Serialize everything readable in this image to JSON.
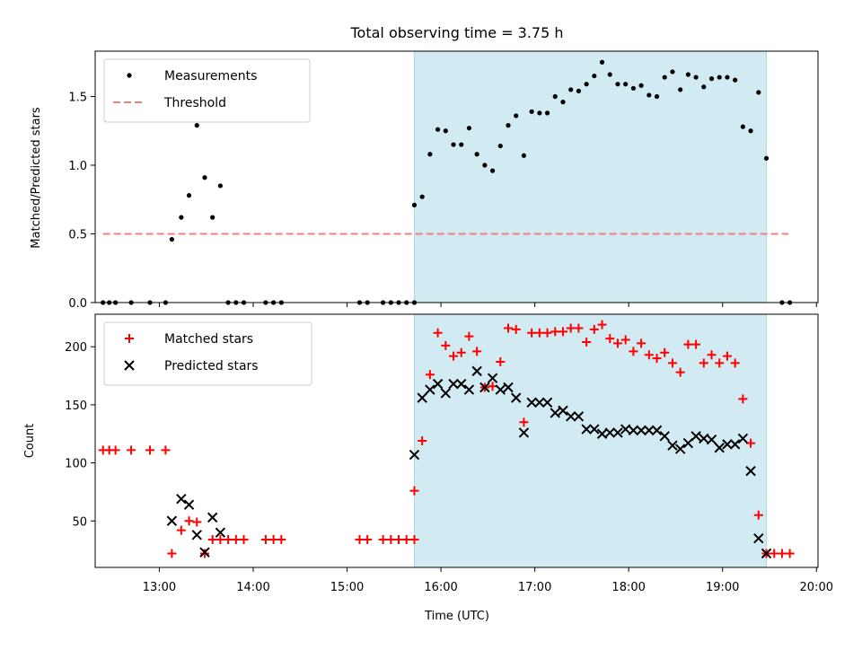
{
  "chart_data": {
    "type": "scatter",
    "title": "Total observing time = 3.75 h",
    "xlabel": "Time (UTC)",
    "x_ticks": [
      "13:00",
      "14:00",
      "15:00",
      "16:00",
      "17:00",
      "18:00",
      "19:00",
      "20:00"
    ],
    "xlim": [
      "12:19",
      "20:01"
    ],
    "shaded_interval": [
      "15:43",
      "19:28"
    ],
    "shade_color": "#add8e6",
    "panels": [
      {
        "ylabel": "Matched/Predicted stars",
        "ylim": [
          0,
          1.83
        ],
        "y_ticks": [
          "0.0",
          "0.5",
          "1.0",
          "1.5"
        ],
        "legend_position": "upper-left",
        "threshold": {
          "name": "Threshold",
          "value": 0.5,
          "x_range": [
            "12:24",
            "19:42"
          ],
          "color": "#f08080",
          "style": "dashed"
        },
        "series": [
          {
            "name": "Measurements",
            "marker": "dot",
            "color": "#000000",
            "points": [
              [
                "12:24",
                0
              ],
              [
                "12:28",
                0
              ],
              [
                "12:32",
                0
              ],
              [
                "12:42",
                0
              ],
              [
                "12:54",
                0
              ],
              [
                "13:04",
                0
              ],
              [
                "13:08",
                0.46
              ],
              [
                "13:14",
                0.62
              ],
              [
                "13:19",
                0.78
              ],
              [
                "13:24",
                1.29
              ],
              [
                "13:29",
                0.91
              ],
              [
                "13:34",
                0.62
              ],
              [
                "13:39",
                0.85
              ],
              [
                "13:44",
                0
              ],
              [
                "13:49",
                0
              ],
              [
                "13:54",
                0
              ],
              [
                "14:08",
                0
              ],
              [
                "14:13",
                0
              ],
              [
                "14:18",
                0
              ],
              [
                "15:08",
                0
              ],
              [
                "15:13",
                0
              ],
              [
                "15:23",
                0
              ],
              [
                "15:28",
                0
              ],
              [
                "15:33",
                0
              ],
              [
                "15:38",
                0
              ],
              [
                "15:43",
                0
              ],
              [
                "15:43",
                0.71
              ],
              [
                "15:48",
                0.77
              ],
              [
                "15:53",
                1.08
              ],
              [
                "15:58",
                1.26
              ],
              [
                "16:03",
                1.25
              ],
              [
                "16:08",
                1.15
              ],
              [
                "16:13",
                1.15
              ],
              [
                "16:18",
                1.27
              ],
              [
                "16:23",
                1.08
              ],
              [
                "16:28",
                1.0
              ],
              [
                "16:33",
                0.96
              ],
              [
                "16:38",
                1.14
              ],
              [
                "16:43",
                1.29
              ],
              [
                "16:48",
                1.36
              ],
              [
                "16:53",
                1.07
              ],
              [
                "16:58",
                1.39
              ],
              [
                "17:03",
                1.38
              ],
              [
                "17:08",
                1.38
              ],
              [
                "17:13",
                1.5
              ],
              [
                "17:18",
                1.46
              ],
              [
                "17:23",
                1.55
              ],
              [
                "17:28",
                1.54
              ],
              [
                "17:33",
                1.59
              ],
              [
                "17:38",
                1.65
              ],
              [
                "17:43",
                1.75
              ],
              [
                "17:48",
                1.66
              ],
              [
                "17:53",
                1.59
              ],
              [
                "17:58",
                1.59
              ],
              [
                "18:03",
                1.56
              ],
              [
                "18:08",
                1.58
              ],
              [
                "18:13",
                1.51
              ],
              [
                "18:18",
                1.5
              ],
              [
                "18:23",
                1.64
              ],
              [
                "18:28",
                1.68
              ],
              [
                "18:33",
                1.55
              ],
              [
                "18:38",
                1.66
              ],
              [
                "18:43",
                1.64
              ],
              [
                "18:48",
                1.57
              ],
              [
                "18:53",
                1.63
              ],
              [
                "18:58",
                1.64
              ],
              [
                "19:03",
                1.64
              ],
              [
                "19:08",
                1.62
              ],
              [
                "19:13",
                1.28
              ],
              [
                "19:18",
                1.25
              ],
              [
                "19:23",
                1.53
              ],
              [
                "19:28",
                1.05
              ],
              [
                "19:38",
                0
              ],
              [
                "19:43",
                0
              ]
            ]
          }
        ]
      },
      {
        "ylabel": "Count",
        "ylim": [
          10,
          228
        ],
        "y_ticks": [
          "50",
          "100",
          "150",
          "200"
        ],
        "legend_position": "upper-left",
        "series": [
          {
            "name": "Matched stars",
            "marker": "plus",
            "color": "#ff0000",
            "points": [
              [
                "12:24",
                111
              ],
              [
                "12:28",
                111
              ],
              [
                "12:32",
                111
              ],
              [
                "12:42",
                111
              ],
              [
                "12:54",
                111
              ],
              [
                "13:04",
                111
              ],
              [
                "13:08",
                22
              ],
              [
                "13:14",
                42
              ],
              [
                "13:19",
                50
              ],
              [
                "13:24",
                49
              ],
              [
                "13:29",
                22
              ],
              [
                "13:34",
                34
              ],
              [
                "13:39",
                34
              ],
              [
                "13:44",
                34
              ],
              [
                "13:49",
                34
              ],
              [
                "13:54",
                34
              ],
              [
                "14:08",
                34
              ],
              [
                "14:13",
                34
              ],
              [
                "14:18",
                34
              ],
              [
                "15:08",
                34
              ],
              [
                "15:13",
                34
              ],
              [
                "15:23",
                34
              ],
              [
                "15:28",
                34
              ],
              [
                "15:33",
                34
              ],
              [
                "15:38",
                34
              ],
              [
                "15:43",
                34
              ],
              [
                "15:43",
                76
              ],
              [
                "15:48",
                119
              ],
              [
                "15:53",
                176
              ],
              [
                "15:58",
                212
              ],
              [
                "16:03",
                201
              ],
              [
                "16:08",
                192
              ],
              [
                "16:13",
                195
              ],
              [
                "16:18",
                209
              ],
              [
                "16:23",
                196
              ],
              [
                "16:28",
                165
              ],
              [
                "16:33",
                166
              ],
              [
                "16:38",
                187
              ],
              [
                "16:43",
                216
              ],
              [
                "16:48",
                215
              ],
              [
                "16:53",
                135
              ],
              [
                "16:58",
                212
              ],
              [
                "17:03",
                212
              ],
              [
                "17:08",
                212
              ],
              [
                "17:13",
                213
              ],
              [
                "17:18",
                213
              ],
              [
                "17:23",
                216
              ],
              [
                "17:28",
                216
              ],
              [
                "17:33",
                204
              ],
              [
                "17:38",
                215
              ],
              [
                "17:43",
                219
              ],
              [
                "17:48",
                207
              ],
              [
                "17:53",
                203
              ],
              [
                "17:58",
                206
              ],
              [
                "18:03",
                196
              ],
              [
                "18:08",
                203
              ],
              [
                "18:13",
                193
              ],
              [
                "18:18",
                190
              ],
              [
                "18:23",
                195
              ],
              [
                "18:28",
                186
              ],
              [
                "18:33",
                178
              ],
              [
                "18:38",
                202
              ],
              [
                "18:43",
                202
              ],
              [
                "18:48",
                186
              ],
              [
                "18:53",
                193
              ],
              [
                "18:58",
                186
              ],
              [
                "19:03",
                192
              ],
              [
                "19:08",
                186
              ],
              [
                "19:13",
                155
              ],
              [
                "19:18",
                117
              ],
              [
                "19:23",
                55
              ],
              [
                "19:28",
                22
              ],
              [
                "19:33",
                22
              ],
              [
                "19:38",
                22
              ],
              [
                "19:43",
                22
              ]
            ]
          },
          {
            "name": "Predicted stars",
            "marker": "x",
            "color": "#000000",
            "points": [
              [
                "13:08",
                50
              ],
              [
                "13:14",
                69
              ],
              [
                "13:19",
                64
              ],
              [
                "13:24",
                38
              ],
              [
                "13:29",
                23
              ],
              [
                "13:34",
                53
              ],
              [
                "13:39",
                40
              ],
              [
                "15:43",
                107
              ],
              [
                "15:48",
                156
              ],
              [
                "15:53",
                163
              ],
              [
                "15:58",
                168
              ],
              [
                "16:03",
                160
              ],
              [
                "16:08",
                168
              ],
              [
                "16:13",
                168
              ],
              [
                "16:18",
                163
              ],
              [
                "16:23",
                179
              ],
              [
                "16:28",
                165
              ],
              [
                "16:33",
                173
              ],
              [
                "16:38",
                163
              ],
              [
                "16:43",
                165
              ],
              [
                "16:48",
                156
              ],
              [
                "16:53",
                126
              ],
              [
                "16:58",
                152
              ],
              [
                "17:03",
                152
              ],
              [
                "17:08",
                152
              ],
              [
                "17:13",
                143
              ],
              [
                "17:18",
                145
              ],
              [
                "17:23",
                140
              ],
              [
                "17:28",
                140
              ],
              [
                "17:33",
                129
              ],
              [
                "17:38",
                129
              ],
              [
                "17:43",
                125
              ],
              [
                "17:48",
                126
              ],
              [
                "17:53",
                126
              ],
              [
                "17:58",
                129
              ],
              [
                "18:03",
                128
              ],
              [
                "18:08",
                128
              ],
              [
                "18:13",
                128
              ],
              [
                "18:18",
                128
              ],
              [
                "18:23",
                123
              ],
              [
                "18:28",
                115
              ],
              [
                "18:33",
                112
              ],
              [
                "18:38",
                117
              ],
              [
                "18:43",
                123
              ],
              [
                "18:48",
                121
              ],
              [
                "18:53",
                120
              ],
              [
                "18:58",
                113
              ],
              [
                "19:03",
                116
              ],
              [
                "19:08",
                116
              ],
              [
                "19:13",
                121
              ],
              [
                "19:18",
                93
              ],
              [
                "19:23",
                35
              ],
              [
                "19:28",
                22
              ]
            ]
          }
        ]
      }
    ]
  }
}
